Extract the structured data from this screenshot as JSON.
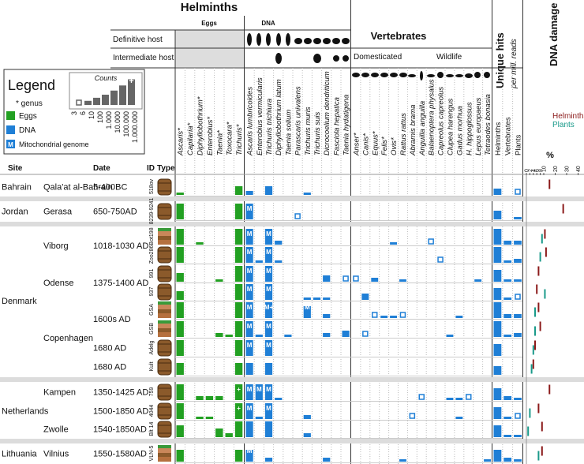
{
  "header": {
    "helminths": "Helminths",
    "eggs": "Eggs",
    "dna": "DNA",
    "definitive_host": "Definitive host",
    "intermediate_host": "Intermediate host",
    "vertebrates": "Vertebrates",
    "domesticated": "Domesticated",
    "wildlife": "Wildlife",
    "unique_hits": "Unique hits",
    "per_mill_reads": "per mill. reads",
    "dna_damage": "DNA damage"
  },
  "legend": {
    "title": "Legend",
    "genus": "* genus",
    "eggs": "Eggs",
    "dna": "DNA",
    "mito_icon": "M",
    "mito": "Mitochondrial genome",
    "counts_title": "Counts",
    "counts": [
      "3",
      "6",
      "10",
      "100",
      "1.000",
      "10.000",
      "100.000",
      "1.000.000"
    ],
    "count_levels": [
      1,
      2,
      3,
      4,
      5,
      6,
      7
    ],
    "plus": "+"
  },
  "table_header": {
    "site": "Site",
    "date": "Date",
    "id": "ID",
    "type": "Type"
  },
  "columns": {
    "eggs": [
      "Ascaris*",
      "Capilaria*",
      "Diphyllobothrium*",
      "Enterobius*",
      "Taenia*",
      "Toxocara*",
      "Trichuris*"
    ],
    "dna": [
      "Ascaris lumbricoides",
      "Enterobius vermicularis",
      "Trichuris trichiura",
      "Diphyllobothrium latum",
      "Taenia solium",
      "Parascaris univalens",
      "Trichuris muris",
      "Trichuris suis",
      "Dicrocoelium dendriticum",
      "Fasciola hepatica",
      "Taenia hydatigena"
    ],
    "domesticated": [
      "Anser*",
      "Canis*",
      "Equus*",
      "Felis*",
      "Ovis*",
      "Rattus rattus"
    ],
    "wildlife": [
      "Abramis brama",
      "Anguilla anguilla",
      "Balaenoptera physalus",
      "Capreolus capreolus",
      "Clupea harengus",
      "Gadus morhua",
      "H. hippoglossus",
      "Lepus europaeus",
      "Tetraodes bonasia"
    ],
    "hits": [
      "Helminths",
      "Vertebrates",
      "Plants"
    ]
  },
  "damage": {
    "legend": [
      "Helminths",
      "Plants"
    ],
    "colors": [
      "#8b1a1a",
      "#1a9a8a"
    ],
    "unit": "%",
    "ticks": [
      0,
      2,
      4,
      6,
      8,
      10,
      20,
      30,
      40
    ]
  },
  "colors": {
    "eggs": "#22a022",
    "dna": "#1f7fd6"
  },
  "rows": [
    {
      "site": "Bahrain",
      "location": "Qala'at al-Bahrain",
      "date": "5-400BC",
      "id": "518ov",
      "type": "barrel",
      "eggs": [
        2,
        0,
        0,
        0,
        0,
        0,
        5
      ],
      "dna": [
        3,
        0,
        5,
        0,
        0,
        0,
        2,
        0,
        0,
        0,
        0
      ],
      "vertebrates": [
        0,
        0,
        0,
        0,
        0,
        0,
        0,
        0,
        0,
        0,
        0,
        0,
        0,
        0,
        0
      ],
      "hits": [
        4,
        0,
        1
      ],
      "damage": [
        15,
        null
      ]
    },
    {
      "site": "Jordan",
      "location": "Gerasa",
      "date": "650-750AD",
      "id": "8239-9241",
      "type": "barrel",
      "eggs": [
        7,
        0,
        0,
        0,
        0,
        0,
        7
      ],
      "dna": [
        7,
        0,
        0,
        0,
        0,
        1,
        0,
        0,
        0,
        0,
        0
      ],
      "dna_labels": [
        "M",
        null,
        null,
        null,
        null,
        null,
        null,
        null,
        null,
        null,
        null
      ],
      "vertebrates": [
        0,
        0,
        0,
        0,
        0,
        0,
        0,
        0,
        0,
        0,
        0,
        0,
        0,
        0,
        0
      ],
      "hits": [
        5,
        0,
        2
      ],
      "damage": [
        27,
        null
      ]
    },
    {
      "site": null,
      "location": "Viborg",
      "date": "1018-1030 AD",
      "id": "Bot198",
      "type": "soil",
      "eggs": [
        7,
        0,
        2,
        0,
        0,
        0,
        7
      ],
      "dna": [
        7,
        0,
        7,
        3,
        0,
        0,
        0,
        0,
        0,
        0,
        0
      ],
      "dna_labels": [
        "M",
        null,
        "M",
        null,
        null,
        null,
        null,
        null,
        null,
        null,
        null
      ],
      "vertebrates": [
        0,
        0,
        0,
        0,
        2,
        0,
        0,
        0,
        1,
        0,
        0,
        0,
        0,
        0,
        0
      ],
      "hits": [
        7,
        3,
        3
      ],
      "damage": [
        11,
        9
      ]
    },
    {
      "site": null,
      "location": null,
      "date": null,
      "id": "Zoo286",
      "type": "barrel",
      "eggs": [
        7,
        0,
        0,
        0,
        0,
        0,
        7
      ],
      "dna": [
        7,
        2,
        7,
        2,
        0,
        0,
        0,
        0,
        0,
        0,
        0
      ],
      "dna_labels": [
        "M",
        null,
        "M",
        null,
        null,
        null,
        null,
        null,
        null,
        null,
        null
      ],
      "vertebrates": [
        0,
        0,
        0,
        0,
        0,
        0,
        0,
        0,
        0,
        1,
        0,
        0,
        0,
        0,
        0
      ],
      "hits": [
        7,
        2,
        3
      ],
      "damage": [
        12,
        8
      ]
    },
    {
      "site": null,
      "location": "Odense",
      "date": "1375-1400 AD",
      "id": "991",
      "type": "barrel",
      "eggs": [
        5,
        0,
        0,
        0,
        2,
        0,
        7
      ],
      "dna": [
        7,
        0,
        7,
        0,
        0,
        0,
        0,
        0,
        4,
        0,
        1
      ],
      "dna_labels": [
        "M",
        null,
        "M",
        null,
        null,
        null,
        null,
        null,
        null,
        null,
        null
      ],
      "vertebrates": [
        1,
        0,
        3,
        0,
        0,
        2,
        0,
        0,
        0,
        0,
        0,
        0,
        0,
        2,
        0
      ],
      "hits": [
        6,
        2,
        2
      ],
      "damage": [
        7,
        null
      ]
    },
    {
      "site": "Denmark",
      "location": null,
      "date": null,
      "id": "937",
      "type": "barrel",
      "eggs": [
        5,
        0,
        0,
        0,
        0,
        0,
        7
      ],
      "dna": [
        7,
        0,
        7,
        0,
        0,
        0,
        2,
        2,
        2,
        0,
        0
      ],
      "dna_labels": [
        "M",
        null,
        "M",
        null,
        null,
        null,
        null,
        null,
        null,
        null,
        null
      ],
      "vertebrates": [
        0,
        4,
        0,
        0,
        0,
        0,
        0,
        0,
        0,
        0,
        0,
        0,
        0,
        0,
        0
      ],
      "hits": [
        6,
        2,
        1
      ],
      "damage": [
        6,
        11
      ]
    },
    {
      "site": null,
      "location": null,
      "date": "1600s AD",
      "id": "GSA",
      "type": "soil",
      "eggs": [
        7,
        0,
        0,
        0,
        0,
        0,
        7
      ],
      "dna": [
        7,
        0,
        7,
        0,
        0,
        0,
        6,
        0,
        3,
        0,
        0
      ],
      "dna_labels": [
        "M",
        null,
        "M+",
        null,
        null,
        null,
        "M",
        null,
        null,
        null,
        null
      ],
      "vertebrates": [
        0,
        0,
        1,
        2,
        2,
        1,
        0,
        0,
        0,
        0,
        0,
        2,
        0,
        0,
        0
      ],
      "hits": [
        7,
        3,
        3
      ],
      "damage": [
        7,
        5
      ]
    },
    {
      "site": null,
      "location": "Copenhagen",
      "date": null,
      "id": "GSB",
      "type": "soil",
      "eggs": [
        7,
        0,
        0,
        0,
        3,
        2,
        7
      ],
      "dna": [
        7,
        2,
        7,
        0,
        2,
        0,
        0,
        0,
        3,
        0,
        4
      ],
      "dna_labels": [
        "M",
        null,
        "M",
        null,
        null,
        null,
        null,
        null,
        null,
        null,
        null
      ],
      "vertebrates": [
        0,
        1,
        0,
        0,
        0,
        0,
        0,
        0,
        0,
        0,
        2,
        0,
        0,
        0,
        0
      ],
      "hits": [
        7,
        2,
        3
      ],
      "damage": [
        8,
        5
      ]
    },
    {
      "site": null,
      "location": null,
      "date": "1680 AD",
      "id": "Adelg",
      "type": "barrel",
      "eggs": [
        7,
        0,
        0,
        0,
        0,
        0,
        7
      ],
      "dna": [
        7,
        0,
        7,
        0,
        0,
        0,
        0,
        0,
        0,
        0,
        0
      ],
      "dna_labels": [
        "M",
        null,
        "M",
        null,
        null,
        null,
        null,
        null,
        null,
        null,
        null
      ],
      "vertebrates": [
        0,
        0,
        0,
        0,
        0,
        0,
        0,
        0,
        0,
        0,
        0,
        0,
        0,
        0,
        0
      ],
      "hits": [
        6,
        0,
        0
      ],
      "damage": [
        5,
        4
      ]
    },
    {
      "site": null,
      "location": null,
      "date": "1680 AD",
      "id": "Kult",
      "type": "barrel",
      "eggs": [
        6,
        0,
        0,
        0,
        0,
        0,
        6
      ],
      "dna": [
        6,
        0,
        6,
        0,
        0,
        0,
        0,
        0,
        0,
        0,
        0
      ],
      "vertebrates": [
        0,
        0,
        0,
        0,
        0,
        0,
        0,
        0,
        0,
        0,
        0,
        0,
        0,
        0,
        0
      ],
      "hits": [
        5,
        0,
        0
      ],
      "damage": [
        4,
        3
      ]
    },
    {
      "site": null,
      "location": "Kampen",
      "date": "1350-1425 AD",
      "id": "759",
      "type": "barrel",
      "eggs": [
        7,
        0,
        3,
        3,
        3,
        0,
        7
      ],
      "eggs_labels": [
        null,
        null,
        null,
        null,
        null,
        null,
        "+"
      ],
      "dna": [
        7,
        7,
        7,
        2,
        0,
        0,
        0,
        0,
        0,
        0,
        0
      ],
      "dna_labels": [
        "M",
        "M",
        "M",
        null,
        null,
        null,
        null,
        null,
        null,
        null,
        null
      ],
      "vertebrates": [
        0,
        0,
        0,
        0,
        0,
        0,
        0,
        1,
        0,
        0,
        2,
        2,
        1,
        0,
        0
      ],
      "hits": [
        6,
        3,
        2
      ],
      "damage": [
        15,
        null
      ]
    },
    {
      "site": "Netherlands",
      "location": null,
      "date": "1500-1850 AD",
      "id": "4044",
      "type": "barrel",
      "eggs": [
        7,
        0,
        2,
        2,
        0,
        0,
        7
      ],
      "eggs_labels": [
        null,
        null,
        null,
        null,
        null,
        null,
        "+"
      ],
      "dna": [
        7,
        2,
        7,
        0,
        0,
        0,
        3,
        0,
        0,
        0,
        0
      ],
      "dna_labels": [
        "M",
        null,
        "M",
        null,
        null,
        null,
        null,
        null,
        null,
        null,
        null
      ],
      "vertebrates": [
        0,
        0,
        0,
        0,
        0,
        0,
        1,
        0,
        0,
        0,
        0,
        2,
        0,
        0,
        0
      ],
      "hits": [
        6,
        2,
        1
      ],
      "damage": [
        7,
        2
      ]
    },
    {
      "site": null,
      "location": "Zwolle",
      "date": "1540-1850AD",
      "id": "Blt 14",
      "type": "barrel",
      "eggs": [
        6,
        0,
        0,
        0,
        5,
        3,
        7
      ],
      "dna": [
        7,
        0,
        7,
        0,
        0,
        0,
        3,
        0,
        0,
        0,
        0
      ],
      "vertebrates": [
        0,
        0,
        0,
        0,
        0,
        0,
        0,
        0,
        0,
        0,
        0,
        0,
        0,
        0,
        0
      ],
      "hits": [
        6,
        2,
        2
      ],
      "damage": [
        9,
        1
      ]
    },
    {
      "site": "Lithuania",
      "location": "Vilnius",
      "date": "1550-1580AD",
      "id": "VLN-5",
      "type": "soil",
      "eggs": [
        6,
        0,
        0,
        0,
        0,
        0,
        6
      ],
      "dna": [
        6,
        0,
        3,
        0,
        0,
        0,
        0,
        0,
        3,
        0,
        0
      ],
      "dna_labels": [
        "M",
        null,
        null,
        null,
        null,
        null,
        null,
        null,
        null,
        null,
        null
      ],
      "vertebrates": [
        0,
        0,
        0,
        0,
        0,
        2,
        0,
        0,
        0,
        0,
        0,
        0,
        0,
        0,
        2
      ],
      "hits": [
        6,
        3,
        2
      ],
      "damage": [
        9,
        7
      ]
    }
  ]
}
